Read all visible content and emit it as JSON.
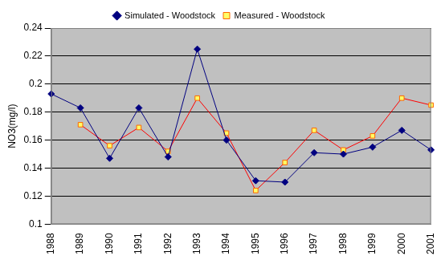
{
  "chart_data": {
    "type": "line",
    "y_label": "NO3(mg/l)",
    "categories": [
      "1988",
      "1989",
      "1990",
      "1991",
      "1992",
      "1993",
      "1994",
      "1995",
      "1996",
      "1997",
      "1998",
      "1999",
      "2000",
      "2001"
    ],
    "series": [
      {
        "name": "Simulated - Woodstock",
        "color": "#000080",
        "marker": "diamond",
        "line_style": "solid",
        "values": [
          0.193,
          0.183,
          0.147,
          0.183,
          0.148,
          0.225,
          0.16,
          0.131,
          0.13,
          0.151,
          0.15,
          0.155,
          0.167,
          0.153
        ]
      },
      {
        "name": "Measured - Woodstock",
        "color": "#ff0000",
        "marker": "square",
        "line_style": "solid",
        "values": [
          null,
          0.171,
          0.156,
          0.169,
          0.152,
          0.19,
          0.165,
          0.124,
          0.144,
          0.167,
          0.153,
          0.163,
          0.19,
          0.185
        ]
      }
    ],
    "ylim": [
      0.1,
      0.24
    ],
    "yticks": [
      0.1,
      0.12,
      0.14,
      0.16,
      0.18,
      0.2,
      0.22,
      0.24
    ],
    "grid": true,
    "legend": "top"
  }
}
